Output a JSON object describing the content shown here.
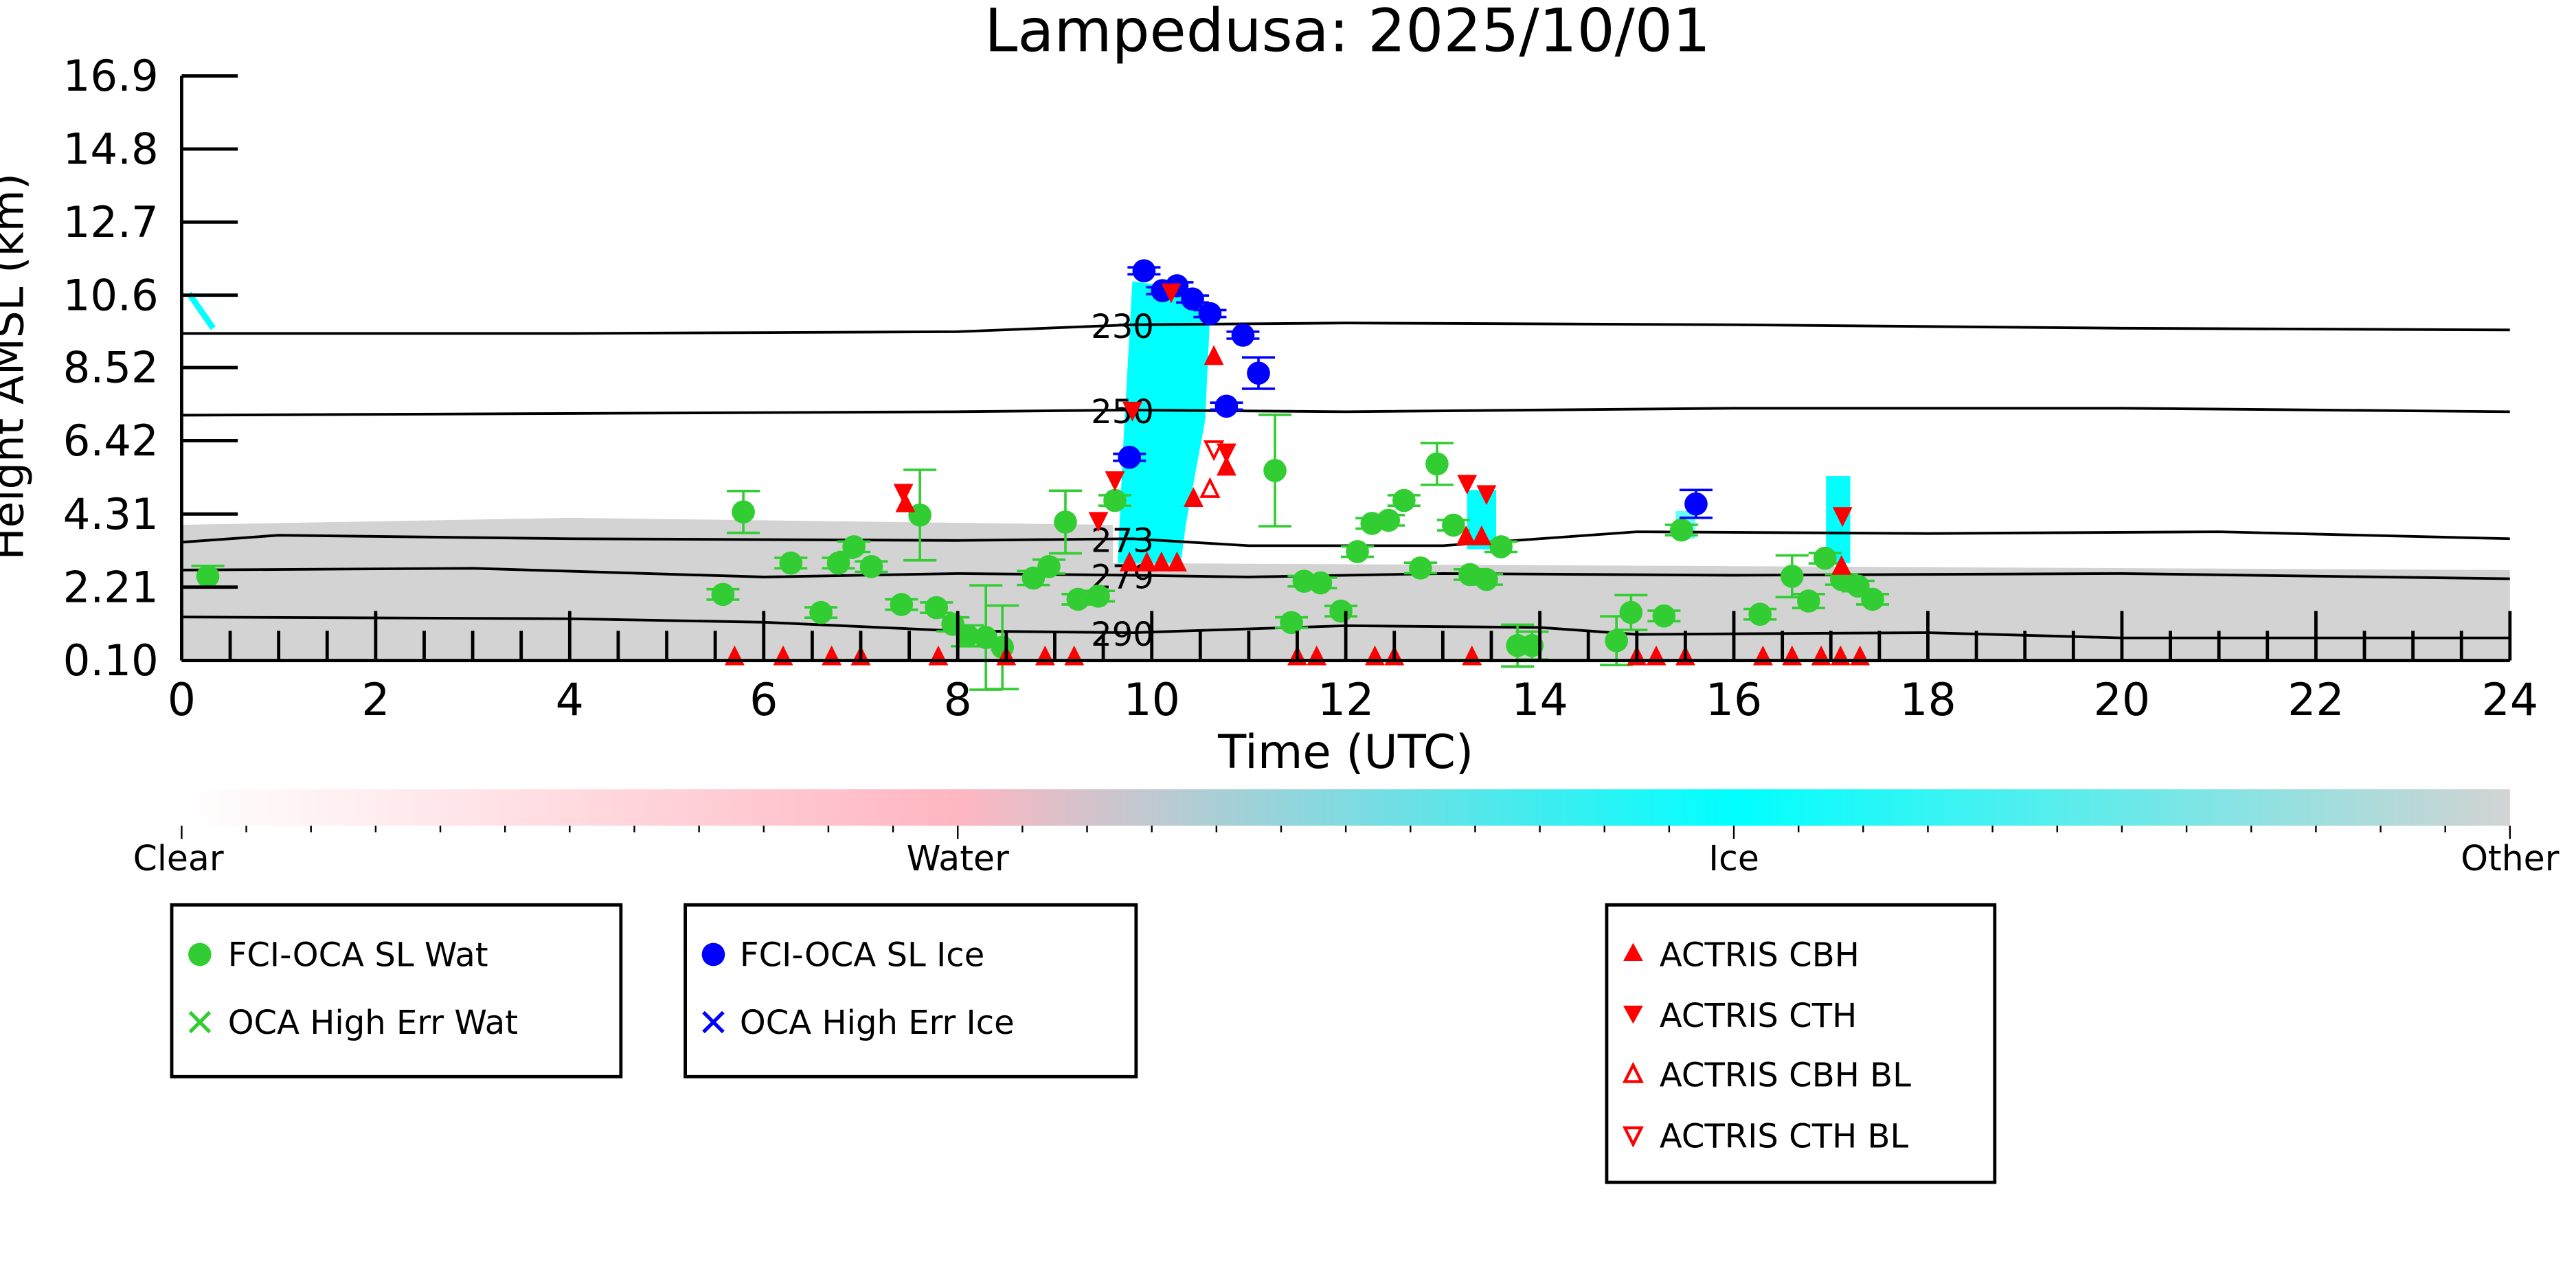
{
  "chart_data": {
    "type": "scatter",
    "title": "Lampedusa: 2025/10/01",
    "xlabel": "Time (UTC)",
    "ylabel": "Height AMSL (km)",
    "xlim": [
      0,
      24
    ],
    "ylim": [
      0.1,
      16.9
    ],
    "xticks": [
      "0",
      "2",
      "4",
      "6",
      "8",
      "10",
      "12",
      "14",
      "16",
      "18",
      "20",
      "22",
      "24"
    ],
    "yticks": [
      "0.10",
      "2.21",
      "4.31",
      "6.42",
      "8.52",
      "10.6",
      "12.7",
      "14.8",
      "16.9"
    ],
    "ytick_values": [
      0.1,
      2.21,
      4.31,
      6.42,
      8.52,
      10.6,
      12.7,
      14.8,
      16.9
    ],
    "colorbar": {
      "labels": [
        "Clear",
        "Water",
        "Ice",
        "Other"
      ],
      "colors": [
        "#ffffff",
        "#ffb6c1",
        "#00ffff",
        "#d3d3d3"
      ]
    },
    "contours": [
      {
        "label": "230",
        "t": [
          0,
          4,
          8,
          9.8,
          12,
          16,
          20,
          24
        ],
        "h": [
          9.5,
          9.5,
          9.55,
          9.75,
          9.8,
          9.75,
          9.65,
          9.6
        ]
      },
      {
        "label": "250",
        "t": [
          0,
          4,
          8,
          9.8,
          12,
          16,
          20,
          24
        ],
        "h": [
          7.15,
          7.2,
          7.25,
          7.3,
          7.25,
          7.35,
          7.35,
          7.25
        ]
      },
      {
        "label": "273",
        "t": [
          0,
          1,
          4,
          8,
          9.8,
          11,
          13,
          15,
          18,
          21,
          24
        ],
        "h": [
          3.5,
          3.7,
          3.6,
          3.55,
          3.6,
          3.4,
          3.4,
          3.8,
          3.75,
          3.8,
          3.6
        ]
      },
      {
        "label": "279",
        "t": [
          0,
          3,
          6,
          8,
          9.8,
          11,
          13,
          16,
          20,
          24
        ],
        "h": [
          2.7,
          2.75,
          2.5,
          2.6,
          2.55,
          2.5,
          2.6,
          2.55,
          2.6,
          2.45
        ]
      },
      {
        "label": "290",
        "t": [
          0,
          4,
          6,
          8,
          9.8,
          12,
          14,
          15,
          18,
          20,
          24
        ],
        "h": [
          1.35,
          1.3,
          1.2,
          0.95,
          0.9,
          1.1,
          1.05,
          0.85,
          0.9,
          0.75,
          0.75
        ]
      }
    ],
    "series": [
      {
        "name": "FCI-OCA SL Wat",
        "color": "#32cd32",
        "marker": "circle",
        "points": [
          [
            0.27,
            2.52,
            0.3
          ],
          [
            5.58,
            2.0,
            0.15
          ],
          [
            5.79,
            4.37,
            0.6
          ],
          [
            6.28,
            2.9,
            0.15
          ],
          [
            6.59,
            1.48,
            0.15
          ],
          [
            6.77,
            2.9,
            0.15
          ],
          [
            6.93,
            3.37,
            0.15
          ],
          [
            7.11,
            2.8,
            0.15
          ],
          [
            7.42,
            1.71,
            0.15
          ],
          [
            7.61,
            4.28,
            1.3
          ],
          [
            7.78,
            1.62,
            0.15
          ],
          [
            7.95,
            1.14,
            0.2
          ],
          [
            8.1,
            0.81,
            0.3
          ],
          [
            8.29,
            0.76,
            1.5
          ],
          [
            8.46,
            0.48,
            1.2
          ],
          [
            8.78,
            2.47,
            0.2
          ],
          [
            8.94,
            2.8,
            0.2
          ],
          [
            9.11,
            4.08,
            0.9
          ],
          [
            9.24,
            1.86,
            0.15
          ],
          [
            9.45,
            1.95,
            0.15
          ],
          [
            9.62,
            4.7,
            0.15
          ],
          [
            11.27,
            5.56,
            1.6
          ],
          [
            11.44,
            1.19,
            0.15
          ],
          [
            11.57,
            2.38,
            0.15
          ],
          [
            11.74,
            2.33,
            0.15
          ],
          [
            11.95,
            1.52,
            0.15
          ],
          [
            12.12,
            3.23,
            0.15
          ],
          [
            12.27,
            4.04,
            0.15
          ],
          [
            12.44,
            4.13,
            0.15
          ],
          [
            12.6,
            4.7,
            0.15
          ],
          [
            12.77,
            2.76,
            0.15
          ],
          [
            12.94,
            5.75,
            0.6
          ],
          [
            13.11,
            3.99,
            0.15
          ],
          [
            13.28,
            2.57,
            0.15
          ],
          [
            13.45,
            2.43,
            0.15
          ],
          [
            13.6,
            3.37,
            0.15
          ],
          [
            13.77,
            0.53,
            0.6
          ],
          [
            13.92,
            0.53,
            0.4
          ],
          [
            14.79,
            0.67,
            0.7
          ],
          [
            14.94,
            1.48,
            0.5
          ],
          [
            15.28,
            1.38,
            0.15
          ],
          [
            15.46,
            3.85,
            0.15
          ],
          [
            16.27,
            1.43,
            0.15
          ],
          [
            16.6,
            2.52,
            0.6
          ],
          [
            16.77,
            1.81,
            0.2
          ],
          [
            16.94,
            3.04,
            0.15
          ],
          [
            17.11,
            2.43,
            0.15
          ],
          [
            17.28,
            2.24,
            0.15
          ],
          [
            17.43,
            1.86,
            0.15
          ]
        ]
      },
      {
        "name": "OCA High Err Wat",
        "color": "#32cd32",
        "marker": "x",
        "points": []
      },
      {
        "name": "FCI-OCA SL Ice",
        "color": "#0000ff",
        "marker": "circle",
        "points": [
          [
            9.77,
            5.94,
            0.1
          ],
          [
            9.92,
            11.3,
            0.1
          ],
          [
            10.11,
            10.73,
            0.1
          ],
          [
            10.26,
            10.87,
            0.1
          ],
          [
            10.42,
            10.49,
            0.1
          ],
          [
            10.6,
            10.07,
            0.1
          ],
          [
            10.77,
            7.41,
            0.1
          ],
          [
            10.94,
            9.45,
            0.1
          ],
          [
            11.1,
            8.36,
            0.45
          ],
          [
            15.61,
            4.6,
            0.4
          ]
        ]
      },
      {
        "name": "OCA High Err Ice",
        "color": "#0000ff",
        "marker": "x",
        "points": []
      },
      {
        "name": "ACTRIS CBH",
        "color": "#ff0000",
        "marker": "triangle-up",
        "points": [
          [
            10.64,
            8.83
          ],
          [
            10.43,
            4.75
          ],
          [
            10.77,
            5.65
          ],
          [
            9.77,
            2.9
          ],
          [
            9.95,
            2.9
          ],
          [
            10.1,
            2.9
          ],
          [
            10.26,
            2.9
          ],
          [
            13.24,
            3.65
          ],
          [
            13.4,
            3.65
          ],
          [
            17.11,
            2.8
          ],
          [
            7.46,
            4.6
          ],
          [
            5.7,
            0.2
          ],
          [
            6.2,
            0.2
          ],
          [
            6.7,
            0.2
          ],
          [
            7.0,
            0.2
          ],
          [
            7.8,
            0.2
          ],
          [
            8.5,
            0.2
          ],
          [
            8.9,
            0.2
          ],
          [
            9.2,
            0.2
          ],
          [
            11.5,
            0.2
          ],
          [
            11.7,
            0.2
          ],
          [
            12.3,
            0.2
          ],
          [
            12.5,
            0.2
          ],
          [
            13.3,
            0.2
          ],
          [
            15.0,
            0.2
          ],
          [
            15.2,
            0.2
          ],
          [
            15.5,
            0.2
          ],
          [
            16.3,
            0.2
          ],
          [
            16.6,
            0.2
          ],
          [
            16.9,
            0.2
          ],
          [
            17.1,
            0.2
          ],
          [
            17.3,
            0.2
          ]
        ]
      },
      {
        "name": "ACTRIS CTH",
        "color": "#ff0000",
        "marker": "triangle-down",
        "points": [
          [
            7.44,
            4.94
          ],
          [
            9.45,
            4.13
          ],
          [
            9.62,
            5.3
          ],
          [
            9.8,
            7.3
          ],
          [
            10.2,
            10.7
          ],
          [
            10.77,
            6.1
          ],
          [
            13.25,
            5.2
          ],
          [
            13.45,
            4.9
          ],
          [
            17.12,
            4.27
          ]
        ]
      },
      {
        "name": "ACTRIS CBH BL",
        "color": "#ff0000",
        "marker": "triangle-up-open",
        "points": [
          [
            10.6,
            5.0
          ]
        ]
      },
      {
        "name": "ACTRIS CTH BL",
        "color": "#ff0000",
        "marker": "triangle-down-open",
        "points": [
          [
            10.64,
            6.2
          ]
        ]
      }
    ]
  }
}
